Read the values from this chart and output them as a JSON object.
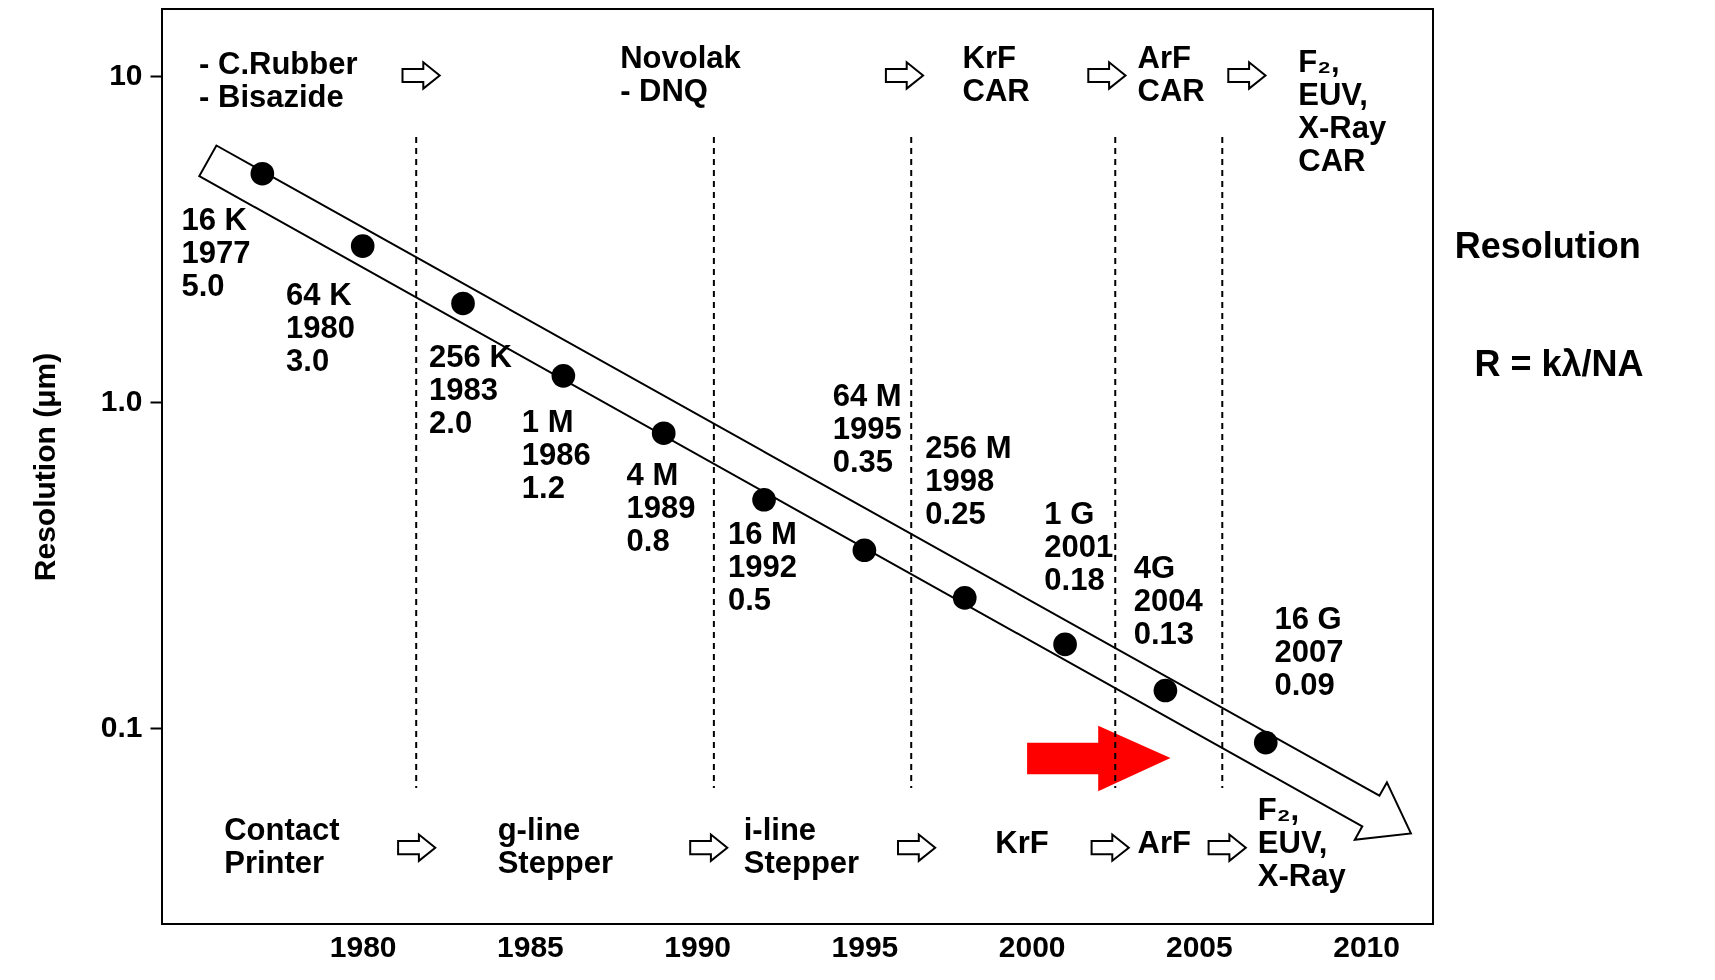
{
  "chart_data": {
    "type": "scatter",
    "ylabel": "Resolution (μm)",
    "x": [
      1977,
      1980,
      1983,
      1986,
      1989,
      1992,
      1995,
      1998,
      2001,
      2004,
      2007
    ],
    "series": [
      {
        "color": "#000000",
        "values": [
          5.0,
          3.0,
          2.0,
          1.2,
          0.8,
          0.5,
          0.35,
          0.25,
          0.18,
          0.13,
          0.09
        ],
        "value_labels": [
          "16 K\n1977\n5.0",
          "64 K\n1980\n3.0",
          "256 K\n1983\n2.0",
          "1 M\n1986\n1.2",
          "4 M\n1989\n0.8",
          "16 M\n1992\n 0.5",
          "64 M\n1995\n0.35",
          "256 M\n1998\n 0.25",
          "1 G\n2001\n 0.18",
          "4G\n2004\n0.13",
          "16 G\n2007\n 0.09"
        ]
      }
    ],
    "xlim": [
      1974,
      2012
    ],
    "ylim": [
      0.025,
      16
    ],
    "xticks": [
      1980,
      1985,
      1990,
      1995,
      2000,
      2005,
      2010
    ],
    "yticks": [
      10,
      {
        "value": 1,
        "label": "1.0"
      },
      0.1
    ],
    "log": "y",
    "grid": false,
    "marker": "circle",
    "ref_lines": [
      {
        "axis": "x",
        "value": 1981.6,
        "color": "#000000",
        "line_style": "dashed"
      },
      {
        "axis": "x",
        "value": 1990.5,
        "color": "#000000",
        "line_style": "dashed"
      },
      {
        "axis": "x",
        "value": 1996.4,
        "color": "#000000",
        "line_style": "dashed"
      },
      {
        "axis": "x",
        "value": 2002.5,
        "color": "#000000",
        "line_style": "dashed"
      },
      {
        "axis": "x",
        "value": 2005.7,
        "color": "#000000",
        "line_style": "dashed"
      }
    ],
    "annotations": [
      "- C.Rubber\n- Bisazide",
      "Novolak\n- DNQ",
      "KrF\nCAR",
      "ArF\nCAR",
      "F₂,\nEUV,\nX-Ray\nCAR",
      "Contact\nPrinter",
      "g-line\nStepper",
      "i-line\nStepper",
      "KrF",
      "ArF",
      "F₂,\nEUV,\nX-Ray",
      "Resolution",
      "R = kλ/NA"
    ]
  }
}
